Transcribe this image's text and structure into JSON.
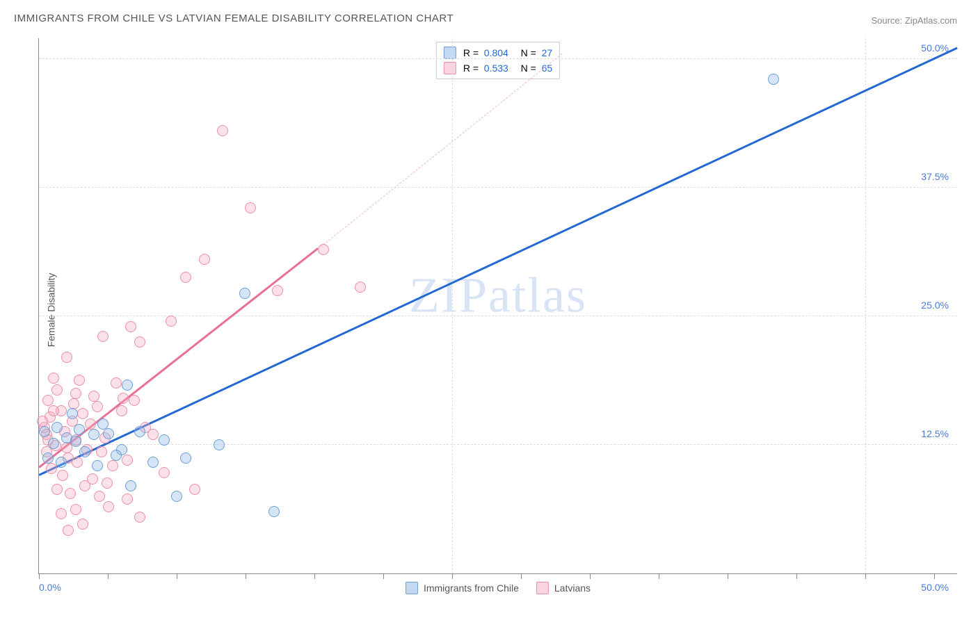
{
  "title": "IMMIGRANTS FROM CHILE VS LATVIAN FEMALE DISABILITY CORRELATION CHART",
  "source": "Source: ZipAtlas.com",
  "ylabel": "Female Disability",
  "watermark": "ZIPatlas",
  "chart": {
    "type": "scatter",
    "xlim": [
      0,
      50
    ],
    "ylim": [
      0,
      52
    ],
    "xtick_labels": [
      "0.0%",
      "50.0%"
    ],
    "ytick_values": [
      12.5,
      25.0,
      37.5,
      50.0
    ],
    "ytick_labels": [
      "12.5%",
      "25.0%",
      "37.5%",
      "50.0%"
    ],
    "xtick_major_positions": [
      0,
      22.5,
      45
    ],
    "xtick_minor_positions": [
      3.75,
      7.5,
      11.25,
      15,
      18.75,
      26.25,
      30,
      33.75,
      37.5,
      41.25,
      48.75
    ],
    "background_color": "#ffffff",
    "grid_color": "#dddddd",
    "axis_color": "#888888",
    "tick_label_color": "#4a7bd4",
    "series": [
      {
        "name": "Immigrants from Chile",
        "color_fill": "rgba(135,180,230,0.35)",
        "color_stroke": "#6a9fd4",
        "trend_color": "#2268d4",
        "R": "0.804",
        "N": "27",
        "trend_line": {
          "x1": 0,
          "y1": 9.5,
          "x2": 50,
          "y2": 51
        },
        "points": [
          [
            40,
            48
          ],
          [
            11.2,
            27.2
          ],
          [
            9.8,
            12.5
          ],
          [
            3,
            13.5
          ],
          [
            8,
            11.2
          ],
          [
            6.2,
            10.8
          ],
          [
            12.8,
            6.0
          ],
          [
            7.5,
            7.5
          ],
          [
            5.0,
            8.5
          ],
          [
            3.5,
            14.5
          ],
          [
            0.8,
            12.6
          ],
          [
            1.5,
            13.2
          ],
          [
            4.5,
            12.0
          ],
          [
            4.8,
            18.3
          ],
          [
            2,
            12.8
          ],
          [
            1,
            14.2
          ],
          [
            3.8,
            13.6
          ],
          [
            0.5,
            11.2
          ],
          [
            2.5,
            11.8
          ],
          [
            6.8,
            13.0
          ],
          [
            1.8,
            15.5
          ],
          [
            3.2,
            10.5
          ],
          [
            0.3,
            13.8
          ],
          [
            2.2,
            14.0
          ],
          [
            5.5,
            13.8
          ],
          [
            4.2,
            11.5
          ],
          [
            1.2,
            10.8
          ]
        ]
      },
      {
        "name": "Latvians",
        "color_fill": "rgba(245,170,190,0.35)",
        "color_stroke": "#e98fa8",
        "trend_color": "#e77095",
        "R": "0.533",
        "N": "65",
        "trend_line": {
          "x1": 0,
          "y1": 10.2,
          "x2": 15.2,
          "y2": 31.5
        },
        "trend_line_dashed": {
          "x1": 15.2,
          "y1": 31.5,
          "x2": 28.5,
          "y2": 50.5
        },
        "points": [
          [
            10,
            43
          ],
          [
            11.5,
            35.5
          ],
          [
            9,
            30.5
          ],
          [
            13,
            27.5
          ],
          [
            8,
            28.8
          ],
          [
            7.2,
            24.5
          ],
          [
            17.5,
            27.8
          ],
          [
            15.5,
            31.5
          ],
          [
            3.5,
            23
          ],
          [
            5.5,
            22.5
          ],
          [
            5,
            24
          ],
          [
            1.5,
            21
          ],
          [
            0.8,
            19
          ],
          [
            2.2,
            18.8
          ],
          [
            2,
            17.5
          ],
          [
            1,
            17.8
          ],
          [
            0.5,
            16.8
          ],
          [
            0.3,
            14.2
          ],
          [
            0.4,
            13.5
          ],
          [
            0.6,
            15.2
          ],
          [
            1.2,
            15.8
          ],
          [
            1.8,
            14.8
          ],
          [
            1.4,
            13.8
          ],
          [
            2.4,
            15.5
          ],
          [
            2.8,
            14.5
          ],
          [
            3.2,
            16.2
          ],
          [
            3.6,
            13.2
          ],
          [
            4.2,
            18.5
          ],
          [
            4.5,
            15.8
          ],
          [
            5.2,
            16.8
          ],
          [
            5.8,
            14.2
          ],
          [
            6.2,
            13.5
          ],
          [
            6.8,
            9.8
          ],
          [
            1.5,
            12.2
          ],
          [
            2.0,
            13.0
          ],
          [
            0.9,
            12.4
          ],
          [
            1.6,
            11.2
          ],
          [
            2.6,
            12.0
          ],
          [
            3.4,
            11.8
          ],
          [
            4.0,
            10.5
          ],
          [
            4.8,
            11.0
          ],
          [
            0.7,
            10.2
          ],
          [
            1.3,
            9.5
          ],
          [
            2.1,
            10.8
          ],
          [
            2.9,
            9.2
          ],
          [
            3.7,
            8.8
          ],
          [
            1.0,
            8.2
          ],
          [
            1.7,
            7.8
          ],
          [
            2.5,
            8.5
          ],
          [
            3.3,
            7.5
          ],
          [
            4.8,
            7.2
          ],
          [
            2.0,
            6.2
          ],
          [
            3.8,
            6.5
          ],
          [
            1.2,
            5.8
          ],
          [
            2.4,
            4.8
          ],
          [
            1.6,
            4.2
          ],
          [
            5.5,
            5.5
          ],
          [
            8.5,
            8.2
          ],
          [
            0.4,
            11.8
          ],
          [
            0.2,
            14.8
          ],
          [
            0.5,
            13.0
          ],
          [
            1.9,
            16.5
          ],
          [
            3.0,
            17.2
          ],
          [
            4.6,
            17.0
          ],
          [
            0.8,
            15.8
          ]
        ]
      }
    ],
    "legend_bottom": [
      {
        "label": "Immigrants from Chile",
        "class": "blue"
      },
      {
        "label": "Latvians",
        "class": "pink"
      }
    ]
  }
}
